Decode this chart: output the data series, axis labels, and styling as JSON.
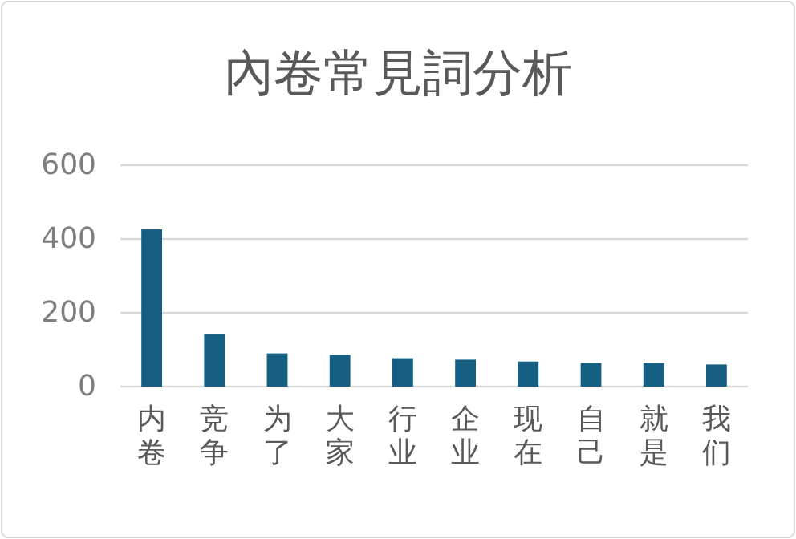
{
  "chart_data": {
    "type": "bar",
    "title": "內卷常見詞分析",
    "categories": [
      "内卷",
      "竞争",
      "为了",
      "大家",
      "行业",
      "企业",
      "现在",
      "自己",
      "就是",
      "我们"
    ],
    "values": [
      426,
      143,
      90,
      86,
      77,
      73,
      68,
      64,
      64,
      60
    ],
    "color": "#156082",
    "ylim": [
      0,
      600
    ],
    "yticks": [
      0,
      200,
      400,
      600
    ],
    "grid": "y"
  }
}
